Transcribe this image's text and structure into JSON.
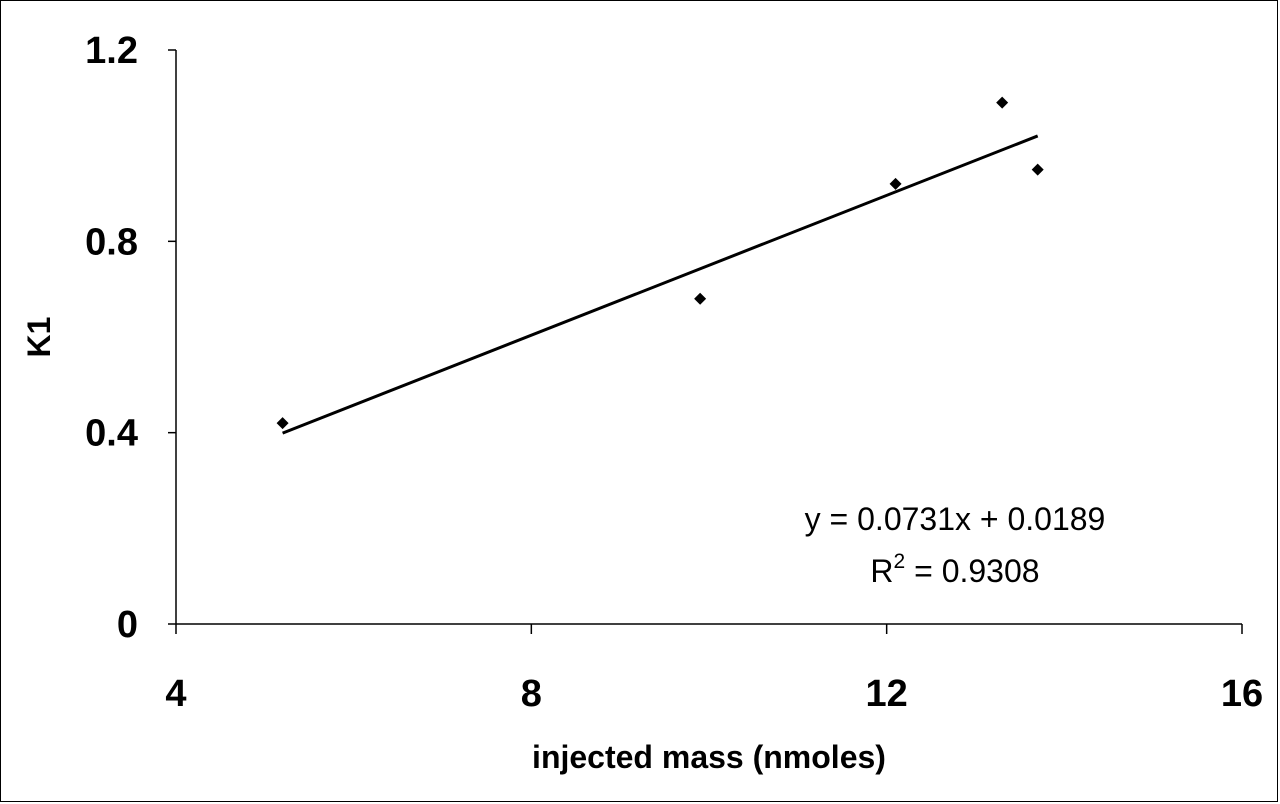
{
  "chart_data": {
    "type": "scatter",
    "title": "",
    "xlabel": "injected mass (nmoles)",
    "ylabel": "K1",
    "xlim": [
      4,
      16
    ],
    "ylim": [
      0,
      1.2
    ],
    "xticks": [
      4,
      8,
      12,
      16
    ],
    "xtick_labels": [
      "4",
      "8",
      "12",
      "16"
    ],
    "yticks": [
      0,
      0.4,
      0.8,
      1.2
    ],
    "ytick_labels": [
      "0",
      "0.4",
      "0.8",
      "1.2"
    ],
    "grid": false,
    "series": [
      {
        "points": [
          {
            "x": 5.2,
            "y": 0.42
          },
          {
            "x": 9.9,
            "y": 0.68
          },
          {
            "x": 12.1,
            "y": 0.92
          },
          {
            "x": 13.3,
            "y": 1.09
          },
          {
            "x": 13.7,
            "y": 0.95
          }
        ],
        "marker": "diamond",
        "color": "#000000"
      }
    ],
    "trendline": {
      "slope": 0.0731,
      "intercept": 0.0189,
      "x_start": 5.2,
      "x_end": 13.7,
      "color": "#000000"
    },
    "annotations": {
      "equation": "y = 0.0731x + 0.0189",
      "r2_prefix": "R",
      "r2_exponent": "2",
      "r2_value": " = 0.9308"
    }
  }
}
